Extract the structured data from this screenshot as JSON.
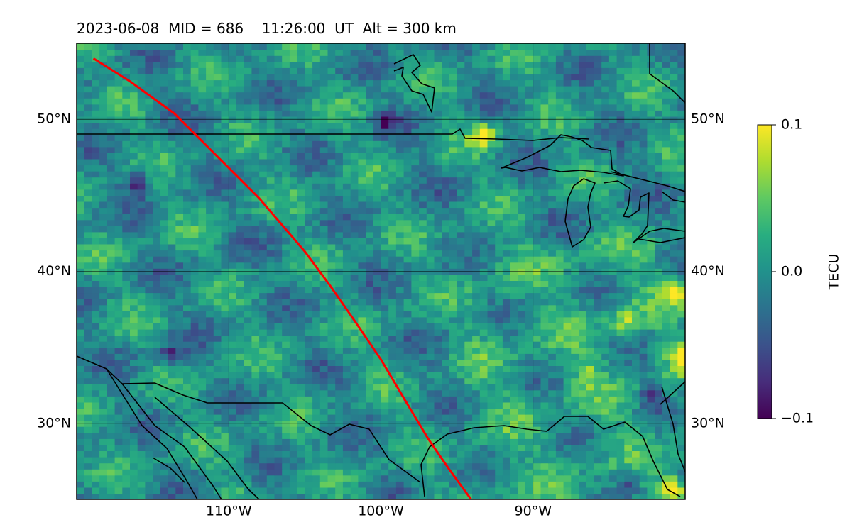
{
  "chart_data": {
    "type": "heatmap",
    "title": "2023-06-08  MID = 686    11:26:00  UT  Alt = 300 km",
    "xlim": [
      -120,
      -80
    ],
    "ylim": [
      25,
      55
    ],
    "x_ticks": [
      {
        "value": -110,
        "label": "110°W"
      },
      {
        "value": -100,
        "label": "100°W"
      },
      {
        "value": -90,
        "label": "90°W"
      }
    ],
    "y_ticks": [
      {
        "value": 30,
        "label": "30°N"
      },
      {
        "value": 40,
        "label": "40°N"
      },
      {
        "value": 50,
        "label": "50°N"
      }
    ],
    "grid": true,
    "colorbar": {
      "label": "TECU",
      "colormap": "viridis",
      "vmin": -0.1,
      "vmax": 0.1,
      "ticks": [
        {
          "value": 0.1,
          "label": "0.1"
        },
        {
          "value": 0.0,
          "label": "0.0"
        },
        {
          "value": -0.1,
          "label": "−0.1"
        }
      ]
    },
    "field_description_values": {
      "background_mean": 0.0,
      "hotspots": [
        {
          "lon": -93.5,
          "lat": 48.7,
          "value": 0.1
        },
        {
          "lon": -80.5,
          "lat": 34.2,
          "value": 0.1
        },
        {
          "lon": -81.0,
          "lat": 25.5,
          "value": 0.1
        },
        {
          "lon": -81.0,
          "lat": 38.4,
          "value": 0.08
        },
        {
          "lon": -84.2,
          "lat": 36.5,
          "value": 0.07
        },
        {
          "lon": -86.7,
          "lat": 33.2,
          "value": 0.06
        }
      ],
      "lowspots": [
        {
          "lon": -116.2,
          "lat": 45.7,
          "value": -0.09
        },
        {
          "lon": -114.0,
          "lat": 34.3,
          "value": -0.08
        },
        {
          "lon": -82.5,
          "lat": 31.6,
          "value": -0.07
        },
        {
          "lon": -99.9,
          "lat": 49.7,
          "value": -0.06
        },
        {
          "lon": -84.0,
          "lat": 26.1,
          "value": -0.06
        }
      ]
    },
    "path_line": {
      "color": "#ff0000",
      "points": [
        [
          -118.9,
          54.0
        ],
        [
          -116.5,
          52.5
        ],
        [
          -113.6,
          50.4
        ],
        [
          -111.0,
          47.8
        ],
        [
          -108.0,
          44.8
        ],
        [
          -105.0,
          41.3
        ],
        [
          -103.3,
          39.0
        ],
        [
          -101.7,
          36.7
        ],
        [
          -100.0,
          34.2
        ],
        [
          -98.4,
          31.5
        ],
        [
          -96.9,
          29.0
        ],
        [
          -95.6,
          27.1
        ],
        [
          -94.0,
          24.9
        ]
      ]
    }
  },
  "colors": {
    "path": "#ff0000",
    "frame": "#000000",
    "coastline": "#000000"
  }
}
